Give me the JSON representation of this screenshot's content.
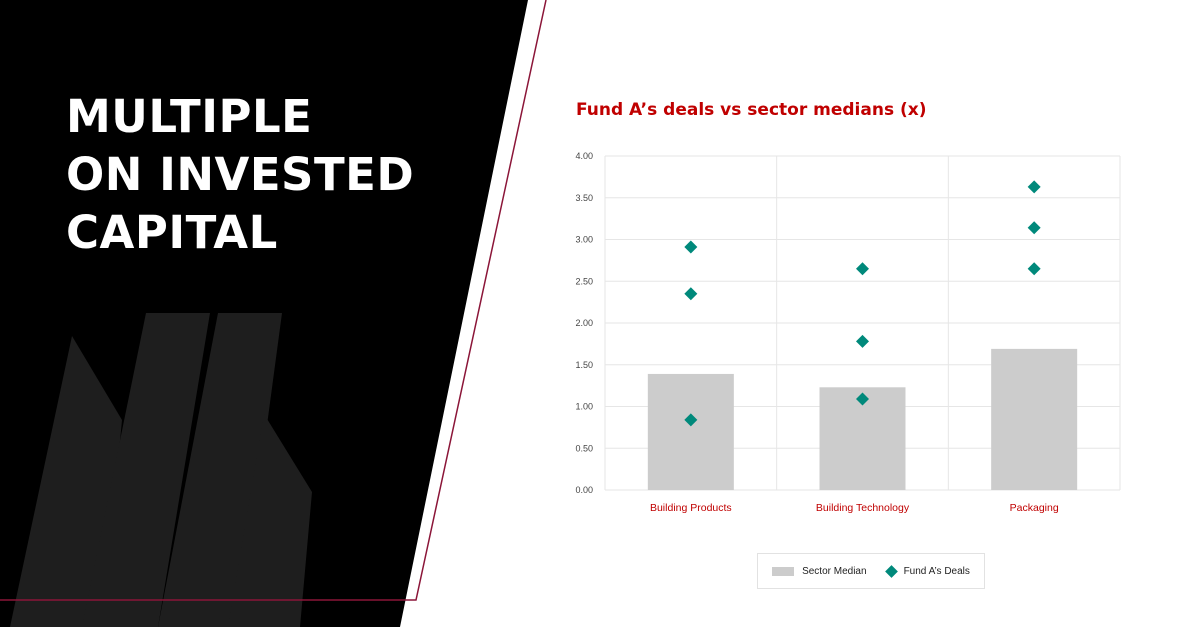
{
  "headline": {
    "lines": [
      "MULTIPLE",
      "ON INVESTED",
      "CAPITAL"
    ]
  },
  "colors": {
    "panel": "#000000",
    "accent_line": "#8b1538",
    "title_red": "#c00000",
    "bar": "#cccccc",
    "diamond": "#00897b"
  },
  "chart_data": {
    "type": "bar",
    "title": "Fund A’s deals vs sector medians (x)",
    "xlabel": "",
    "ylabel": "",
    "categories": [
      "Building Products",
      "Building Technology",
      "Packaging"
    ],
    "ylim": [
      0,
      4
    ],
    "yticks": [
      "0.00",
      "0.50",
      "1.00",
      "1.50",
      "2.00",
      "2.50",
      "3.00",
      "3.50",
      "4.00"
    ],
    "grid": true,
    "legend_position": "bottom",
    "series": [
      {
        "name": "Sector Median",
        "kind": "bar",
        "values": [
          1.39,
          1.23,
          1.69
        ]
      },
      {
        "name": "Fund A’s Deals",
        "kind": "scatter",
        "points": [
          {
            "category": "Building Products",
            "values": [
              0.84,
              2.35,
              2.91
            ]
          },
          {
            "category": "Building Technology",
            "values": [
              1.09,
              1.78,
              2.65
            ]
          },
          {
            "category": "Packaging",
            "values": [
              2.65,
              3.14,
              3.63
            ]
          }
        ]
      }
    ]
  }
}
